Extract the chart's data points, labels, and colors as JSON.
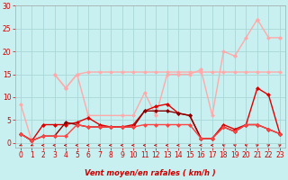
{
  "xlabel": "Vent moyen/en rafales ( km/h )",
  "background_color": "#c8f0f0",
  "grid_color": "#a8d8d8",
  "xlim": [
    -0.5,
    23.5
  ],
  "ylim": [
    -1,
    30
  ],
  "yticks": [
    0,
    5,
    10,
    15,
    20,
    25,
    30
  ],
  "xticks": [
    0,
    1,
    2,
    3,
    4,
    5,
    6,
    7,
    8,
    9,
    10,
    11,
    12,
    13,
    14,
    15,
    16,
    17,
    18,
    19,
    20,
    21,
    22,
    23
  ],
  "series": [
    {
      "x": [
        0,
        1,
        2,
        3,
        4,
        5,
        6,
        7,
        8,
        9,
        10,
        11,
        12,
        13,
        14,
        15,
        16,
        17,
        18,
        19,
        20,
        21,
        22,
        23
      ],
      "y": [
        8.5,
        0.3,
        null,
        null,
        12,
        null,
        null,
        null,
        null,
        null,
        null,
        null,
        null,
        null,
        null,
        null,
        16,
        null,
        null,
        19,
        null,
        27,
        null,
        23
      ],
      "color": "#ffaaaa",
      "lw": 1.0,
      "marker": "D",
      "ms": 2.5,
      "zorder": 2
    },
    {
      "x": [
        3,
        4,
        5,
        6,
        7,
        8,
        9,
        10,
        11,
        12,
        13,
        14,
        15,
        16,
        17,
        18,
        19,
        20,
        21,
        22,
        23
      ],
      "y": [
        15,
        12,
        15,
        15.5,
        15.5,
        15.5,
        15.5,
        15.5,
        15.5,
        15.5,
        15.5,
        15.5,
        15.5,
        15.5,
        15.5,
        15.5,
        15.5,
        15.5,
        15.5,
        15.5,
        15.5
      ],
      "color": "#ffaaaa",
      "lw": 1.0,
      "marker": "D",
      "ms": 2.5,
      "zorder": 2
    },
    {
      "x": [
        3,
        4,
        5,
        6,
        9,
        10,
        11,
        12,
        13,
        14,
        15,
        16,
        17,
        18,
        19,
        20,
        21,
        22,
        23
      ],
      "y": [
        15,
        12,
        15,
        6,
        6,
        6,
        11,
        6,
        15,
        15,
        15,
        16,
        6,
        20,
        19,
        23,
        27,
        23,
        23
      ],
      "color": "#ffaaaa",
      "lw": 1.0,
      "marker": "D",
      "ms": 2.5,
      "zorder": 2
    },
    {
      "x": [
        0,
        1,
        2,
        3,
        4,
        5,
        6,
        7,
        8,
        9,
        10,
        11,
        12,
        13,
        14,
        15,
        16,
        17,
        18,
        19,
        20,
        21,
        22,
        23
      ],
      "y": [
        2,
        0.5,
        4,
        4,
        4,
        4.5,
        5.5,
        4,
        3.5,
        3.5,
        4,
        7,
        8,
        8.5,
        6.5,
        6,
        1,
        1,
        4,
        3,
        4,
        12,
        10.5,
        2
      ],
      "color": "#dd0000",
      "lw": 1.0,
      "marker": "D",
      "ms": 2.5,
      "zorder": 3
    },
    {
      "x": [
        0,
        1,
        2,
        3,
        4,
        5,
        6,
        7,
        8,
        9,
        10,
        11,
        12,
        13,
        14,
        15,
        16,
        17,
        18,
        19,
        20,
        21,
        22,
        23
      ],
      "y": [
        2,
        0.5,
        1.5,
        1.5,
        4.5,
        4,
        3.5,
        3.5,
        3.5,
        3.5,
        3.5,
        7,
        7,
        7,
        6.5,
        6,
        1,
        1,
        3.5,
        2.5,
        4,
        4,
        3,
        2
      ],
      "color": "#880000",
      "lw": 1.0,
      "marker": "D",
      "ms": 2.5,
      "zorder": 3
    },
    {
      "x": [
        0,
        1,
        2,
        3,
        4,
        5,
        6,
        7,
        8,
        9,
        10,
        11,
        12,
        13,
        14,
        15,
        16,
        17,
        18,
        19,
        20,
        21,
        22,
        23
      ],
      "y": [
        2,
        0.5,
        1.5,
        1.5,
        1.5,
        4,
        3.5,
        3.5,
        3.5,
        3.5,
        3.5,
        4,
        4,
        4,
        4,
        4,
        1,
        1,
        3.5,
        2.5,
        4,
        4,
        3,
        2
      ],
      "color": "#ff4444",
      "lw": 1.0,
      "marker": "D",
      "ms": 2.5,
      "zorder": 3
    }
  ],
  "arrows": {
    "x": [
      0,
      1,
      2,
      3,
      4,
      5,
      6,
      7,
      8,
      9,
      10,
      11,
      12,
      13,
      14,
      15,
      16,
      17,
      18,
      19,
      20,
      21,
      22,
      23
    ],
    "angles": [
      225,
      225,
      270,
      270,
      270,
      270,
      270,
      270,
      270,
      270,
      270,
      270,
      270,
      270,
      270,
      270,
      270,
      270,
      315,
      315,
      315,
      45,
      45,
      45
    ]
  }
}
